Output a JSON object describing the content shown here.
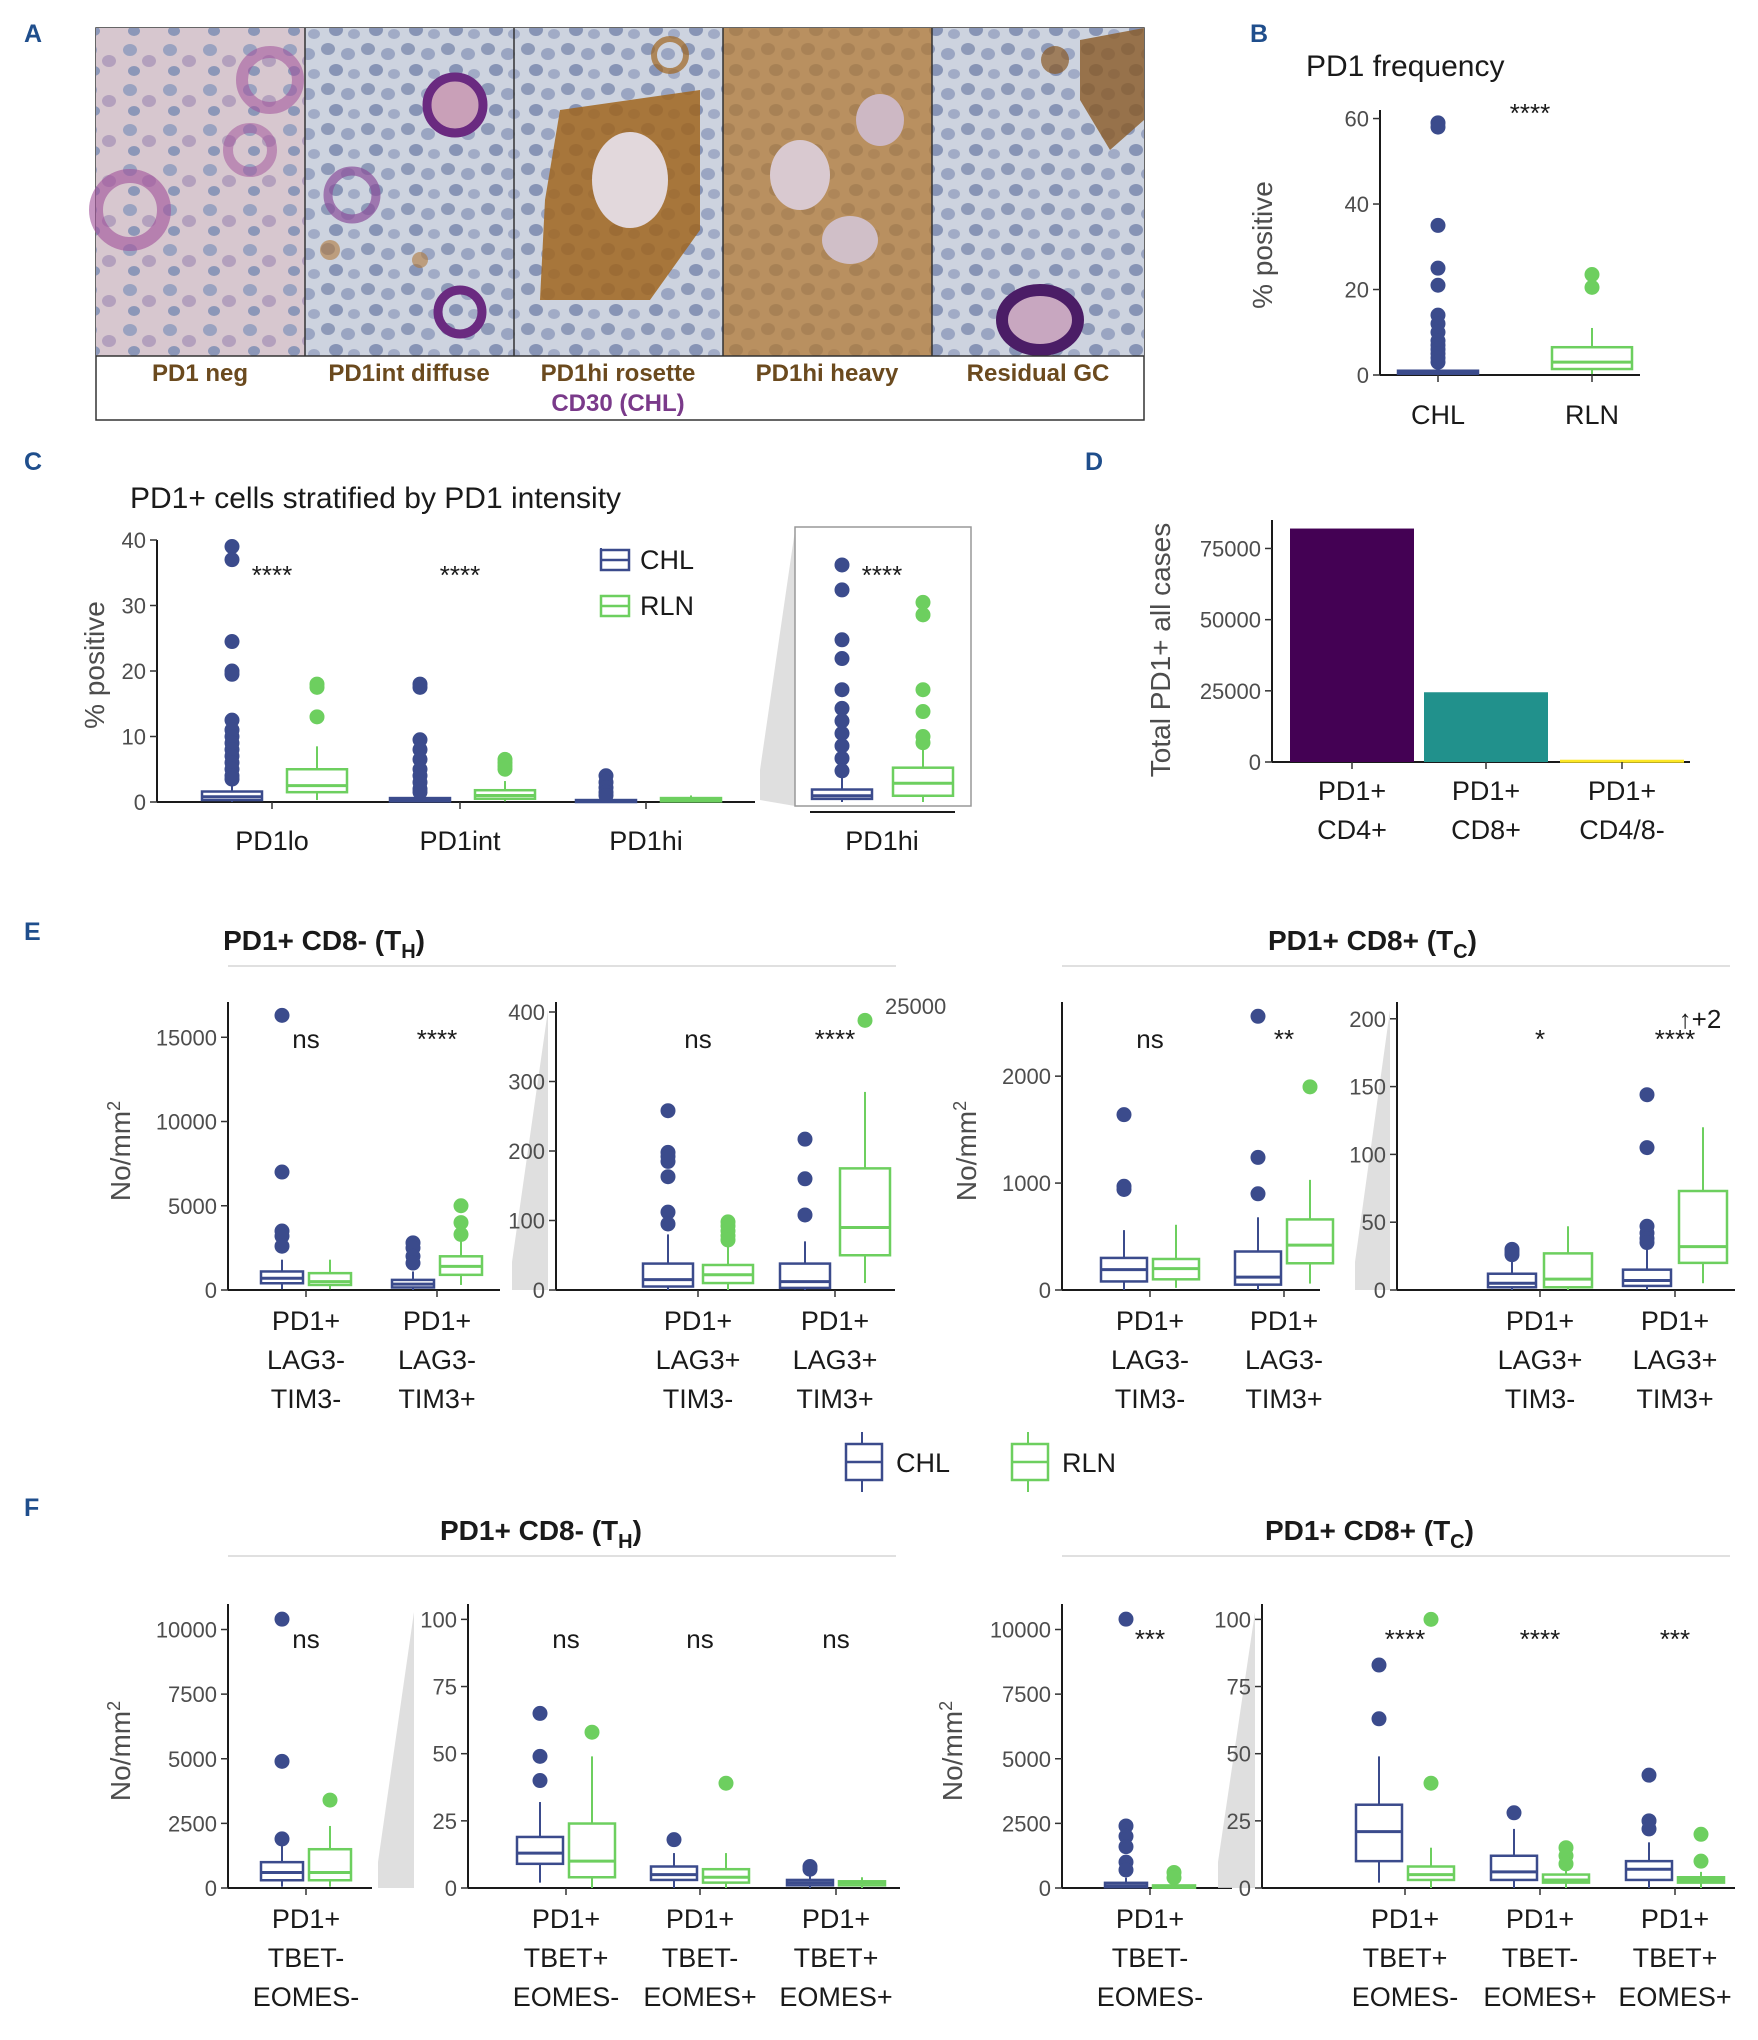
{
  "colors": {
    "chl": "#3b4b8c",
    "rln": "#6dcf5f",
    "cd4": "#440154",
    "cd8": "#21918c",
    "dn": "#fde725",
    "heading": "#1f4e8c",
    "label_brown": "#6b4a1e",
    "label_purple": "#7a3a8a",
    "grey_cat": "#9a9a9a"
  },
  "panel_labels": {
    "a": "A",
    "b": "B",
    "c": "C",
    "d": "D",
    "e": "E",
    "f": "F"
  },
  "panelA": {
    "labels": [
      "PD1 neg",
      "PD1int diffuse",
      "PD1hi rosette",
      "PD1hi heavy",
      "Residual GC"
    ],
    "cd30_label": "CD30 (CHL)"
  },
  "legend": {
    "chl": "CHL",
    "rln": "RLN"
  },
  "chart_data": [
    {
      "id": "B",
      "type": "box",
      "title": "PD1 frequency",
      "ylabel": "% positive",
      "ylim": [
        0,
        62
      ],
      "yticks": [
        0,
        20,
        40,
        60
      ],
      "categories": [
        "CHL",
        "RLN"
      ],
      "signif": "****",
      "boxes": [
        {
          "group": "CHL",
          "q1": 0.3,
          "median": 0.6,
          "q3": 1.0,
          "lo": 0,
          "hi": 2.2,
          "outliers": [
            59,
            58,
            35,
            25,
            21,
            14,
            12,
            10,
            8,
            7,
            6,
            5,
            4,
            3
          ]
        },
        {
          "group": "RLN",
          "q1": 1.4,
          "median": 3,
          "q3": 6.5,
          "lo": 0.2,
          "hi": 11,
          "outliers": [
            23.5,
            20.5
          ]
        }
      ]
    },
    {
      "id": "C",
      "type": "box",
      "title": "PD1+ cells stratified by PD1 intensity",
      "ylabel": "% positive",
      "ylim": [
        0,
        40
      ],
      "yticks": [
        0,
        10,
        20,
        30,
        40
      ],
      "categories": [
        "PD1lo",
        "PD1int",
        "PD1hi"
      ],
      "signif": [
        "****",
        "****",
        ""
      ],
      "boxes": [
        {
          "group": "CHL",
          "cat": "PD1lo",
          "q1": 0.3,
          "median": 0.8,
          "q3": 1.6,
          "lo": 0,
          "hi": 3,
          "outliers": [
            39,
            37,
            24.5,
            20,
            19.5,
            12.5,
            11,
            10,
            9,
            8,
            7,
            6,
            5,
            4,
            3.5
          ]
        },
        {
          "group": "RLN",
          "cat": "PD1lo",
          "q1": 1.5,
          "median": 2.5,
          "q3": 5,
          "lo": 0.3,
          "hi": 8.5,
          "outliers": [
            18,
            17.5,
            13
          ]
        },
        {
          "group": "CHL",
          "cat": "PD1int",
          "q1": 0.1,
          "median": 0.3,
          "q3": 0.6,
          "lo": 0,
          "hi": 1.2,
          "outliers": [
            18,
            17.5,
            9.5,
            8,
            6.5,
            5,
            4,
            3,
            2,
            1.5
          ]
        },
        {
          "group": "RLN",
          "cat": "PD1int",
          "q1": 0.5,
          "median": 1,
          "q3": 1.8,
          "lo": 0.1,
          "hi": 3.2,
          "outliers": [
            6.5,
            6,
            5.5,
            5
          ]
        },
        {
          "group": "CHL",
          "cat": "PD1hi",
          "q1": 0.05,
          "median": 0.1,
          "q3": 0.3,
          "lo": 0,
          "hi": 0.6,
          "outliers": [
            4,
            3,
            2.2,
            1.5,
            1
          ]
        },
        {
          "group": "RLN",
          "cat": "PD1hi",
          "q1": 0.1,
          "median": 0.3,
          "q3": 0.6,
          "lo": 0,
          "hi": 1,
          "outliers": []
        }
      ],
      "zoom": {
        "category": "PD1hi",
        "signif": "****",
        "ylim": [
          0,
          4.2
        ],
        "boxes": [
          {
            "group": "CHL",
            "q1": 0.05,
            "median": 0.1,
            "q3": 0.2,
            "lo": 0,
            "hi": 0.4,
            "outliers": [
              3.8,
              3.4,
              2.6,
              2.3,
              1.8,
              1.5,
              1.3,
              1.1,
              0.9,
              0.7,
              0.5
            ]
          },
          {
            "group": "RLN",
            "q1": 0.1,
            "median": 0.3,
            "q3": 0.55,
            "lo": 0,
            "hi": 0.9,
            "outliers": [
              3.2,
              3.0,
              1.8,
              1.45,
              1.05,
              0.95
            ]
          }
        ]
      }
    },
    {
      "id": "D",
      "type": "bar",
      "ylabel": "Total PD1+ all cases",
      "ylim": [
        0,
        85000
      ],
      "yticks": [
        0,
        25000,
        50000,
        75000
      ],
      "yticklabels": [
        "0",
        "25000",
        "50000",
        "75000"
      ],
      "categories": [
        "PD1+\nCD4+",
        "PD1+\nCD8+",
        "PD1+\nCD4/8-"
      ],
      "values": [
        82000,
        24500,
        800
      ]
    },
    {
      "id": "E-TH-1",
      "type": "box",
      "title": "PD1+ CD8- (TH)",
      "ylabel": "No/mm2",
      "ylim": [
        0,
        16500
      ],
      "yticks": [
        0,
        5000,
        10000,
        15000
      ],
      "categories": [
        "PD1+\nLAG3-\nTIM3-",
        "PD1+\nLAG3-\nTIM3+"
      ],
      "signif": [
        "ns",
        "****"
      ],
      "boxes": [
        {
          "group": "CHL",
          "q1": 400,
          "median": 700,
          "q3": 1100,
          "lo": 50,
          "hi": 1800,
          "outliers": [
            16300,
            7000,
            3500,
            3200,
            2600
          ]
        },
        {
          "group": "RLN",
          "q1": 300,
          "median": 500,
          "q3": 1000,
          "lo": 50,
          "hi": 1800,
          "outliers": []
        },
        {
          "group": "CHL",
          "q1": 150,
          "median": 350,
          "q3": 600,
          "lo": 0,
          "hi": 1100,
          "outliers": [
            2800,
            2500,
            2000,
            1600
          ]
        },
        {
          "group": "RLN",
          "q1": 900,
          "median": 1400,
          "q3": 2000,
          "lo": 300,
          "hi": 3000,
          "outliers": [
            5000,
            4000,
            3300
          ]
        }
      ]
    },
    {
      "id": "E-TH-2",
      "type": "box",
      "ylim": [
        0,
        400
      ],
      "yticks": [
        0,
        100,
        200,
        300,
        400
      ],
      "categories": [
        "PD1+\nLAG3+\nTIM3-",
        "PD1+\nLAG3+\nTIM3+"
      ],
      "signif": [
        "ns",
        "****"
      ],
      "annotation": "25000",
      "boxes": [
        {
          "group": "CHL",
          "q1": 5,
          "median": 15,
          "q3": 38,
          "lo": 0,
          "hi": 80,
          "outliers": [
            258,
            198,
            192,
            185,
            163,
            112,
            95
          ]
        },
        {
          "group": "RLN",
          "q1": 10,
          "median": 22,
          "q3": 36,
          "lo": 0,
          "hi": 66,
          "outliers": [
            98,
            92,
            85,
            78,
            72
          ]
        },
        {
          "group": "CHL",
          "q1": 3,
          "median": 12,
          "q3": 38,
          "lo": 0,
          "hi": 70,
          "outliers": [
            217,
            160,
            108
          ]
        },
        {
          "group": "RLN",
          "q1": 50,
          "median": 90,
          "q3": 175,
          "lo": 10,
          "hi": 285,
          "outliers": [
            388
          ]
        }
      ]
    },
    {
      "id": "E-TC-1",
      "type": "box",
      "title": "PD1+ CD8+ (TC)",
      "ylabel": "No/mm2",
      "ylim": [
        0,
        2600
      ],
      "yticks": [
        0,
        1000,
        2000
      ],
      "categories": [
        "PD1+\nLAG3-\nTIM3-",
        "PD1+\nLAG3-\nTIM3+"
      ],
      "signif": [
        "ns",
        "**"
      ],
      "boxes": [
        {
          "group": "CHL",
          "q1": 80,
          "median": 190,
          "q3": 300,
          "lo": 0,
          "hi": 560,
          "outliers": [
            1640,
            970,
            940
          ]
        },
        {
          "group": "RLN",
          "q1": 100,
          "median": 200,
          "q3": 290,
          "lo": 20,
          "hi": 610,
          "outliers": []
        },
        {
          "group": "CHL",
          "q1": 50,
          "median": 120,
          "q3": 360,
          "lo": 0,
          "hi": 680,
          "outliers": [
            2560,
            1240,
            900
          ]
        },
        {
          "group": "RLN",
          "q1": 250,
          "median": 420,
          "q3": 660,
          "lo": 60,
          "hi": 1030,
          "outliers": [
            1900
          ]
        }
      ]
    },
    {
      "id": "E-TC-2",
      "type": "box",
      "ylim": [
        0,
        205
      ],
      "yticks": [
        0,
        50,
        100,
        150,
        200
      ],
      "categories": [
        "PD1+\nLAG3+\nTIM3-",
        "PD1+\nLAG3+\nTIM3+"
      ],
      "signif": [
        "*",
        "****"
      ],
      "annotation": "↑+2",
      "boxes": [
        {
          "group": "CHL",
          "q1": 2,
          "median": 5,
          "q3": 12,
          "lo": 0,
          "hi": 22,
          "outliers": [
            30,
            28,
            26
          ]
        },
        {
          "group": "RLN",
          "q1": 2,
          "median": 8,
          "q3": 27,
          "lo": 0,
          "hi": 47,
          "outliers": []
        },
        {
          "group": "CHL",
          "q1": 3,
          "median": 7,
          "q3": 15,
          "lo": 0,
          "hi": 30,
          "outliers": [
            144,
            105,
            47,
            42,
            38,
            35
          ]
        },
        {
          "group": "RLN",
          "q1": 20,
          "median": 32,
          "q3": 73,
          "lo": 5,
          "hi": 120,
          "outliers": []
        }
      ]
    },
    {
      "id": "F-TH-1",
      "type": "box",
      "title": "PD1+ CD8- (TH)",
      "ylabel": "No/mm2",
      "ylim": [
        0,
        10600
      ],
      "yticks": [
        0,
        2500,
        5000,
        7500,
        10000
      ],
      "categories": [
        "PD1+\nTBET-\nEOMES-"
      ],
      "signif": [
        "ns"
      ],
      "boxes": [
        {
          "group": "CHL",
          "q1": 300,
          "median": 600,
          "q3": 1000,
          "lo": 50,
          "hi": 1700,
          "outliers": [
            10400,
            4900,
            1900
          ]
        },
        {
          "group": "RLN",
          "q1": 300,
          "median": 600,
          "q3": 1500,
          "lo": 50,
          "hi": 2400,
          "outliers": [
            3400
          ]
        }
      ]
    },
    {
      "id": "F-TH-2",
      "type": "box",
      "ylim": [
        0,
        102
      ],
      "yticks": [
        0,
        25,
        50,
        75,
        100
      ],
      "categories": [
        "PD1+\nTBET+\nEOMES-",
        "PD1+\nTBET-\nEOMES+",
        "PD1+\nTBET+\nEOMES+"
      ],
      "signif": [
        "ns",
        "ns",
        "ns"
      ],
      "boxes": [
        {
          "group": "CHL",
          "q1": 9,
          "median": 13,
          "q3": 19,
          "lo": 2,
          "hi": 32,
          "outliers": [
            65,
            49,
            40
          ]
        },
        {
          "group": "RLN",
          "q1": 4,
          "median": 10,
          "q3": 24,
          "lo": 0,
          "hi": 49,
          "outliers": [
            58
          ]
        },
        {
          "group": "CHL",
          "q1": 3,
          "median": 5,
          "q3": 8,
          "lo": 0,
          "hi": 13,
          "outliers": [
            18
          ]
        },
        {
          "group": "RLN",
          "q1": 2,
          "median": 4,
          "q3": 7,
          "lo": 0,
          "hi": 13,
          "outliers": [
            39
          ]
        },
        {
          "group": "CHL",
          "q1": 1,
          "median": 2,
          "q3": 3,
          "lo": 0,
          "hi": 5,
          "outliers": [
            8,
            7
          ]
        },
        {
          "group": "RLN",
          "q1": 1,
          "median": 2,
          "q3": 2.5,
          "lo": 0,
          "hi": 4,
          "outliers": []
        }
      ]
    },
    {
      "id": "F-TC-1",
      "type": "box",
      "title": "PD1+ CD8+ (TC)",
      "ylabel": "No/mm2",
      "ylim": [
        0,
        10600
      ],
      "yticks": [
        0,
        2500,
        5000,
        7500,
        10000
      ],
      "categories": [
        "PD1+\nTBET-\nEOMES-"
      ],
      "signif": [
        "***"
      ],
      "boxes": [
        {
          "group": "CHL",
          "q1": 30,
          "median": 90,
          "q3": 200,
          "lo": 0,
          "hi": 400,
          "outliers": [
            10400,
            2400,
            2000,
            1600,
            1000,
            700
          ]
        },
        {
          "group": "RLN",
          "q1": 10,
          "median": 40,
          "q3": 100,
          "lo": 0,
          "hi": 200,
          "outliers": [
            600,
            400
          ]
        }
      ]
    },
    {
      "id": "F-TC-2",
      "type": "box",
      "ylim": [
        0,
        102
      ],
      "yticks": [
        0,
        25,
        50,
        75,
        100
      ],
      "categories": [
        "PD1+\nTBET+\nEOMES-",
        "PD1+\nTBET-\nEOMES+",
        "PD1+\nTBET+\nEOMES+"
      ],
      "signif": [
        "****",
        "****",
        "***"
      ],
      "boxes": [
        {
          "group": "CHL",
          "q1": 10,
          "median": 21,
          "q3": 31,
          "lo": 2,
          "hi": 49,
          "outliers": [
            83,
            63
          ]
        },
        {
          "group": "RLN",
          "q1": 3,
          "median": 5,
          "q3": 8,
          "lo": 0,
          "hi": 15,
          "outliers": [
            100,
            39
          ]
        },
        {
          "group": "CHL",
          "q1": 3,
          "median": 6,
          "q3": 12,
          "lo": 0,
          "hi": 22,
          "outliers": [
            28
          ]
        },
        {
          "group": "RLN",
          "q1": 2,
          "median": 3,
          "q3": 5,
          "lo": 0,
          "hi": 8,
          "outliers": [
            15,
            12,
            9
          ]
        },
        {
          "group": "CHL",
          "q1": 3,
          "median": 7,
          "q3": 10,
          "lo": 0,
          "hi": 17,
          "outliers": [
            42,
            25,
            22
          ]
        },
        {
          "group": "RLN",
          "q1": 2,
          "median": 3,
          "q3": 4,
          "lo": 0,
          "hi": 6,
          "outliers": [
            20,
            10
          ]
        }
      ]
    }
  ]
}
